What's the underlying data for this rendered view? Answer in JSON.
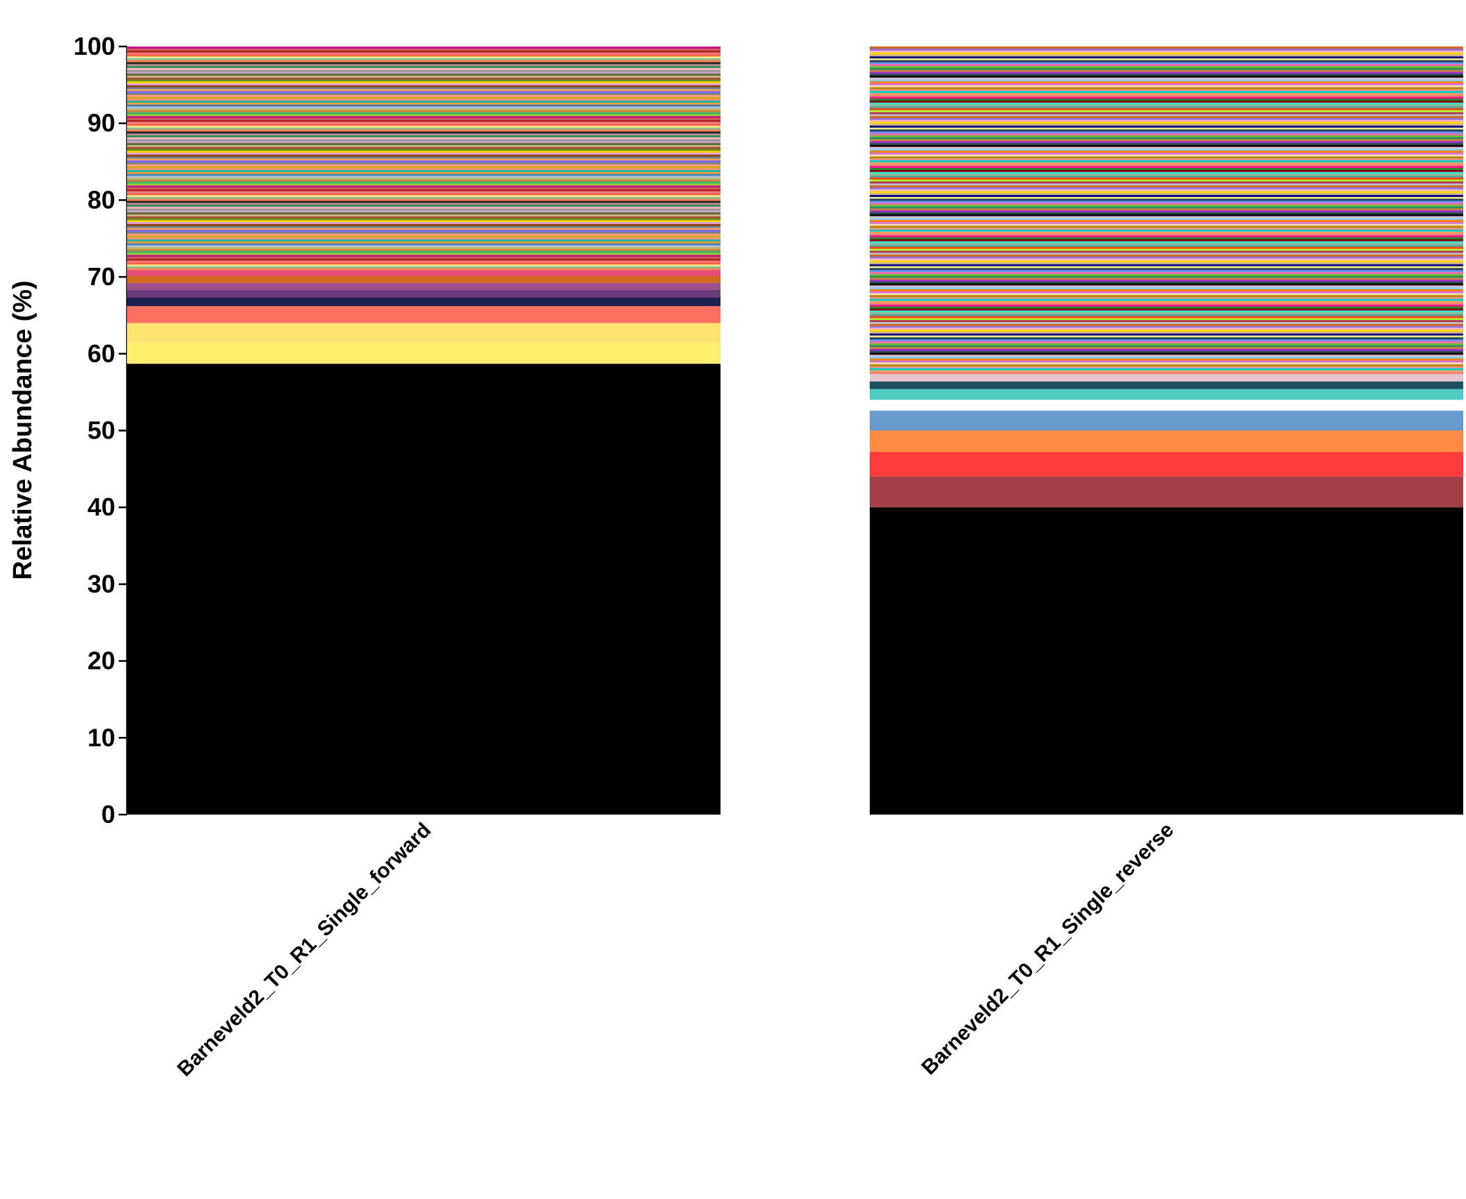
{
  "chart_data": {
    "type": "bar",
    "stacked": true,
    "ylabel": "Relative Abundance (%)",
    "ylim": [
      0,
      100
    ],
    "yticks": [
      0,
      10,
      20,
      30,
      40,
      50,
      60,
      70,
      80,
      90,
      100
    ],
    "grid": false,
    "legend": "none",
    "categories": [
      "Barneveld2_T0_R1_Single_forward",
      "Barneveld2_T0_R1_Single_reverse"
    ],
    "stacks": [
      {
        "category": "Barneveld2_T0_R1_Single_forward",
        "major_segments": [
          {
            "value": 58.7,
            "color": "#000000"
          },
          {
            "value": 2.8,
            "color": "#FFED6F"
          },
          {
            "value": 2.5,
            "color": "#FFE26F"
          },
          {
            "value": 2.2,
            "color": "#FF6F61"
          },
          {
            "value": 1.1,
            "color": "#1B1F4A"
          },
          {
            "value": 1.0,
            "color": "#6B3A7C"
          },
          {
            "value": 0.9,
            "color": "#A04F8C"
          },
          {
            "value": 0.9,
            "color": "#D2691E"
          },
          {
            "value": 0.8,
            "color": "#E84D7A"
          }
        ],
        "minor_band_top": 100,
        "minor_band_colors": [
          "#FF7F50",
          "#9A9A9A",
          "#6B8E23",
          "#F4A460",
          "#E9967A",
          "#BDB76B",
          "#CD5C5C",
          "#8FBC8F",
          "#FFB6C1",
          "#A0522D",
          "#708090",
          "#DAA520",
          "#B0C4DE",
          "#C71585",
          "#F0E68C",
          "#2E8B57",
          "#D2B48C",
          "#8B4513",
          "#FFA07A",
          "#4682B4",
          "#9ACD32",
          "#FF6347",
          "#BC8F8F",
          "#556B2F",
          "#DDA0DD",
          "#808080",
          "#E9A23B",
          "#3CB371",
          "#F08080",
          "#222222",
          "#C8A2C8",
          "#FFD700",
          "#7B68EE",
          "#20B2AA",
          "#CD853F",
          "#B22222"
        ]
      },
      {
        "category": "Barneveld2_T0_R1_Single_reverse",
        "major_segments": [
          {
            "value": 40.0,
            "color": "#000000"
          },
          {
            "value": 4.0,
            "color": "#A23E48"
          },
          {
            "value": 3.2,
            "color": "#FF3B3B"
          },
          {
            "value": 2.8,
            "color": "#FF8C42"
          },
          {
            "value": 2.6,
            "color": "#6699CC"
          },
          {
            "value": 1.4,
            "color": "#FFFFFF"
          },
          {
            "value": 1.4,
            "color": "#4ECDC4"
          },
          {
            "value": 1.0,
            "color": "#1F4E5F"
          },
          {
            "value": 1.0,
            "color": "#E8C4D0"
          }
        ],
        "minor_band_top": 100,
        "minor_band_colors": [
          "#6BBF3A",
          "#000000",
          "#F5DEB3",
          "#FA8072",
          "#8FBC8F",
          "#C0C0C0",
          "#D2B48C",
          "#FF69B4",
          "#2F4F4F",
          "#DA70D6",
          "#F4A460",
          "#40E0D0",
          "#B03060",
          "#FFD700",
          "#6495ED",
          "#9932CC",
          "#FF7F00",
          "#00CED1",
          "#8B0000",
          "#ADFF2F",
          "#FFB6C1",
          "#1E3A5F",
          "#CD853F",
          "#87CEEB",
          "#E9967A",
          "#228B22",
          "#FF4500",
          "#9370DB",
          "#F0E68C",
          "#2E8B57",
          "#D8BFD8",
          "#B8860B",
          "#FF1493",
          "#5F9EA0",
          "#D2691E",
          "#000080"
        ]
      }
    ]
  }
}
